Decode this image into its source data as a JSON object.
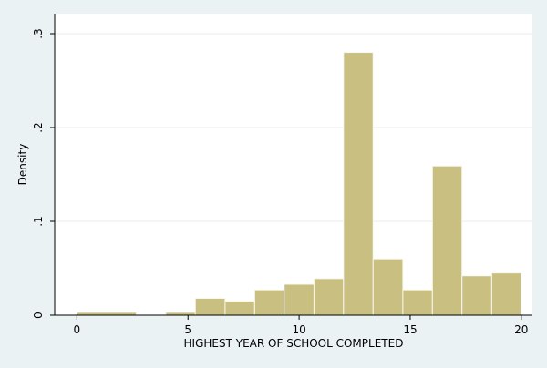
{
  "chart_data": {
    "type": "bar",
    "xlabel": "HIGHEST YEAR OF SCHOOL COMPLETED",
    "ylabel": "Density",
    "xlim": [
      -1,
      20.5
    ],
    "ylim": [
      0,
      0.3
    ],
    "xticks": [
      0,
      5,
      10,
      15,
      20
    ],
    "xtick_labels": [
      "0",
      "5",
      "10",
      "15",
      "20"
    ],
    "yticks": [
      0,
      0.1,
      0.2,
      0.3
    ],
    "ytick_labels": [
      "0",
      ".1",
      ".2",
      ".3"
    ],
    "grid": true,
    "bins": [
      {
        "start": 0.0,
        "end": 2.67,
        "value": 0.003
      },
      {
        "start": 4.0,
        "end": 5.33,
        "value": 0.003
      },
      {
        "start": 5.33,
        "end": 6.67,
        "value": 0.018
      },
      {
        "start": 6.67,
        "end": 8.0,
        "value": 0.015
      },
      {
        "start": 8.0,
        "end": 9.33,
        "value": 0.027
      },
      {
        "start": 9.33,
        "end": 10.67,
        "value": 0.033
      },
      {
        "start": 10.67,
        "end": 12.0,
        "value": 0.039
      },
      {
        "start": 12.0,
        "end": 13.33,
        "value": 0.28
      },
      {
        "start": 13.33,
        "end": 14.67,
        "value": 0.06
      },
      {
        "start": 14.67,
        "end": 16.0,
        "value": 0.027
      },
      {
        "start": 16.0,
        "end": 17.33,
        "value": 0.159
      },
      {
        "start": 17.33,
        "end": 18.67,
        "value": 0.042
      },
      {
        "start": 18.67,
        "end": 20.0,
        "value": 0.045
      }
    ],
    "colors": {
      "background": "#eaf2f3",
      "plot_area": "#ffffff",
      "bar_fill": "#c8bf80",
      "bar_stroke": "#f8f8f0",
      "grid": "#e6eced",
      "axis": "#000000"
    }
  }
}
